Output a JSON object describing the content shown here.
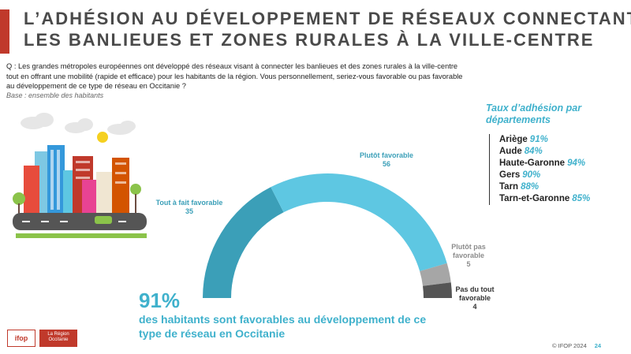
{
  "title": {
    "line1": "L’ADHÉSION AU DÉVELOPPEMENT DE RÉSEAUX CONNECTANT",
    "line2": "LES BANLIEUES ET ZONES RURALES À LA VILLE-CENTRE"
  },
  "question": {
    "line1": "Q : Les grandes métropoles européennes ont développé des réseaux visant à connecter les banlieues et des zones rurales à la ville-centre",
    "line2": "tout en offrant une mobilité (rapide et efficace) pour les habitants de la région. Vous personnellement, seriez-vous favorable ou pas favorable",
    "line3": "au développement de ce type de réseau en Occitanie ?"
  },
  "base": "Base : ensemble des habitants",
  "chart_data": {
    "type": "pie",
    "style": "semi-donut",
    "categories": [
      "Tout à fait favorable",
      "Plutôt favorable",
      "Plutôt pas favorable",
      "Pas du tout favorable"
    ],
    "values": [
      35,
      56,
      5,
      4
    ],
    "colors": [
      "#3b9fb8",
      "#5ec7e2",
      "#a6a6a6",
      "#555555"
    ],
    "labels": [
      {
        "lines": [
          "Tout à fait favorable",
          "35"
        ]
      },
      {
        "lines": [
          "Plutôt favorable",
          "56"
        ]
      },
      {
        "lines": [
          "Plutôt pas",
          "favorable",
          "5"
        ]
      },
      {
        "lines": [
          "Pas du tout",
          "favorable",
          "4"
        ]
      }
    ]
  },
  "kpi": {
    "value": "91%",
    "text": "des habitants sont favorables au développement de ce type de réseau en Occitanie"
  },
  "departments": {
    "title": "Taux d’adhésion par départements",
    "items": [
      {
        "name": "Ariège",
        "pct": "91%"
      },
      {
        "name": "Aude",
        "pct": "84%"
      },
      {
        "name": "Haute-Garonne",
        "pct": "94%"
      },
      {
        "name": "Gers",
        "pct": "90%"
      },
      {
        "name": "Tarn",
        "pct": "88%"
      },
      {
        "name": "Tarn-et-Garonne",
        "pct": "85%"
      }
    ]
  },
  "logos": {
    "ifop": "ifop",
    "region": "La Région Occitanie"
  },
  "footer": {
    "copyright": "© IFOP 2024",
    "page": "24"
  },
  "colors": {
    "accent": "#3fb1cc",
    "brand_red": "#c0392b"
  }
}
